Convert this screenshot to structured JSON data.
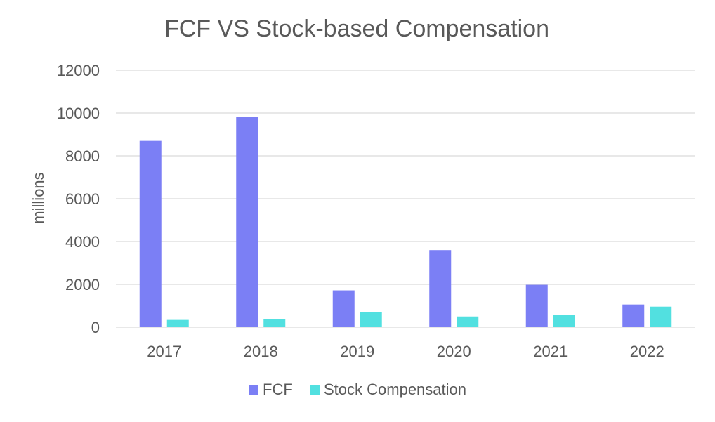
{
  "chart_data": {
    "type": "bar",
    "title": "FCF VS Stock-based Compensation",
    "xlabel": "",
    "ylabel": "millions",
    "categories": [
      "2017",
      "2018",
      "2019",
      "2020",
      "2021",
      "2022"
    ],
    "series": [
      {
        "name": "FCF",
        "color": "#7b7ff5",
        "values": [
          8700,
          9830,
          1720,
          3600,
          1980,
          1060
        ]
      },
      {
        "name": "Stock Compensation",
        "color": "#52e0e0",
        "values": [
          340,
          370,
          700,
          500,
          570,
          960
        ]
      }
    ],
    "ylim": [
      0,
      12000
    ],
    "yticks": [
      "0",
      "2000",
      "4000",
      "6000",
      "8000",
      "10000",
      "12000"
    ],
    "grid": true,
    "legend_position": "bottom",
    "gridline_color": "#d9d9d9"
  }
}
